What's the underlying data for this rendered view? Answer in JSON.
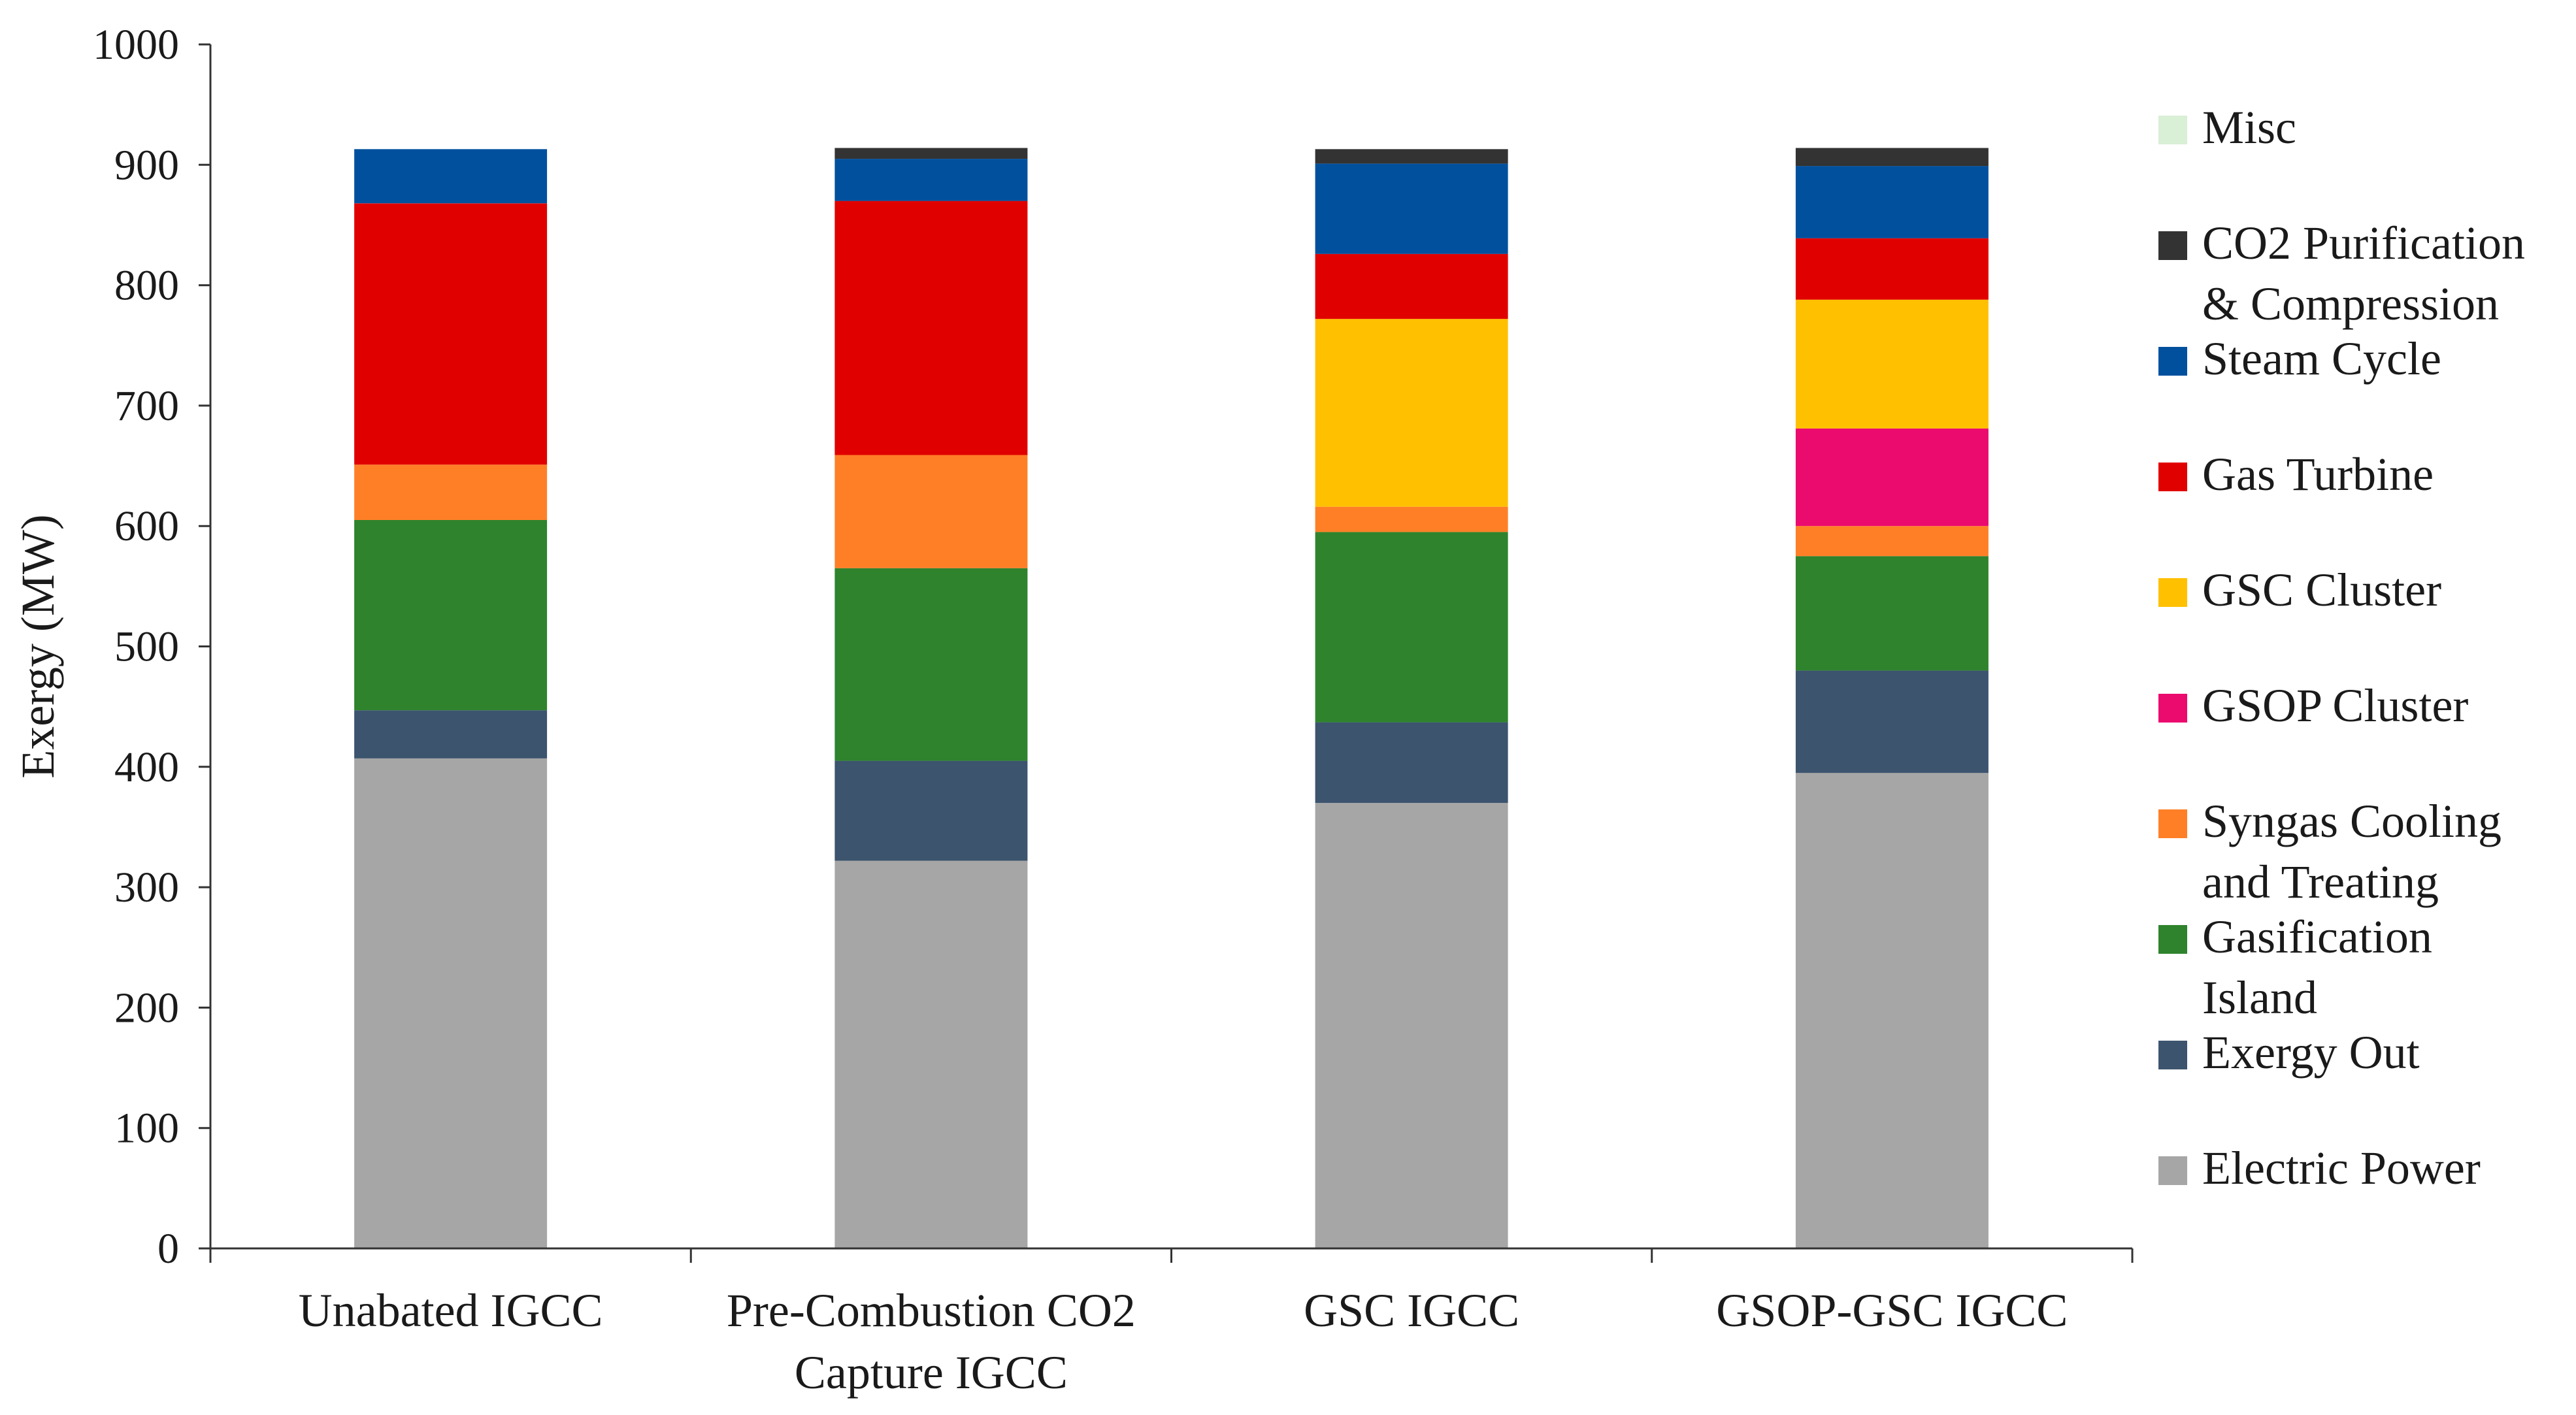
{
  "chart_data": {
    "type": "bar",
    "stacked": true,
    "title": "",
    "xlabel": "",
    "ylabel": "Exergy (MW)",
    "ylim": [
      0,
      1000
    ],
    "yticks": [
      0,
      100,
      200,
      300,
      400,
      500,
      600,
      700,
      800,
      900,
      1000
    ],
    "grid": false,
    "legend_position": "right",
    "categories": [
      [
        "Unabated IGCC"
      ],
      [
        "Pre-Combustion CO2",
        "Capture IGCC"
      ],
      [
        "GSC  IGCC"
      ],
      [
        "GSOP-GSC IGCC"
      ]
    ],
    "series": [
      {
        "name": "Electric Power",
        "label_lines": [
          "Electric Power"
        ],
        "color": "#a6a6a6",
        "values": [
          407,
          322,
          370,
          395
        ]
      },
      {
        "name": "Exergy Out",
        "label_lines": [
          "Exergy Out"
        ],
        "color": "#3c546e",
        "values": [
          40,
          83,
          67,
          85
        ]
      },
      {
        "name": "Gasification Island",
        "label_lines": [
          "Gasification",
          "Island"
        ],
        "color": "#2e832c",
        "values": [
          158,
          160,
          158,
          95
        ]
      },
      {
        "name": "Syngas Cooling and Treating",
        "label_lines": [
          "Syngas Cooling",
          "and Treating"
        ],
        "color": "#ff7f27",
        "values": [
          46,
          94,
          21,
          25
        ]
      },
      {
        "name": "GSOP Cluster",
        "label_lines": [
          "GSOP Cluster"
        ],
        "color": "#eb0a6e",
        "values": [
          0,
          0,
          0,
          81
        ]
      },
      {
        "name": "GSC Cluster",
        "label_lines": [
          "GSC Cluster"
        ],
        "color": "#ffc000",
        "values": [
          0,
          0,
          156,
          107
        ]
      },
      {
        "name": "Gas Turbine",
        "label_lines": [
          "Gas Turbine"
        ],
        "color": "#e00000",
        "values": [
          217,
          211,
          54,
          51
        ]
      },
      {
        "name": "Steam Cycle",
        "label_lines": [
          "Steam Cycle"
        ],
        "color": "#00509e",
        "values": [
          45,
          35,
          75,
          60
        ]
      },
      {
        "name": "CO2 Purification & Compression",
        "label_lines": [
          "CO2 Purification",
          "& Compression"
        ],
        "color": "#333333",
        "values": [
          0,
          9,
          12,
          15
        ]
      },
      {
        "name": "Misc",
        "label_lines": [
          "Misc"
        ],
        "color": "#d9efd6",
        "values": [
          0,
          0,
          0,
          0
        ]
      }
    ]
  }
}
